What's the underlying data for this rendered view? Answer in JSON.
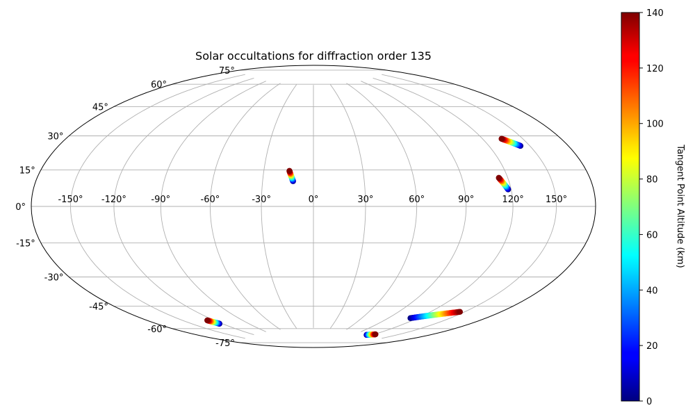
{
  "chart_data": {
    "type": "scatter",
    "projection": "hammer",
    "title": "Solar occultations for diffraction order 135",
    "x_ticks": [
      "-150°",
      "-120°",
      "-90°",
      "-60°",
      "-30°",
      "0°",
      "30°",
      "60°",
      "90°",
      "120°",
      "150°"
    ],
    "x_tick_values": [
      -150,
      -120,
      -90,
      -60,
      -30,
      0,
      30,
      60,
      90,
      120,
      150
    ],
    "y_ticks": [
      "-75°",
      "-60°",
      "-45°",
      "-30°",
      "-15°",
      "0°",
      "15°",
      "30°",
      "45°",
      "60°",
      "75°"
    ],
    "y_tick_values": [
      -75,
      -60,
      -45,
      -30,
      -15,
      0,
      15,
      30,
      45,
      60,
      75
    ],
    "grid": true,
    "colorbar": {
      "label": "Tangent Point Altitude (km)",
      "range": [
        0,
        140
      ],
      "ticks": [
        "0",
        "20",
        "40",
        "60",
        "80",
        "100",
        "120",
        "140"
      ],
      "tick_values": [
        0,
        20,
        40,
        60,
        80,
        100,
        120,
        140
      ],
      "colormap": "jet",
      "placement": "right"
    },
    "tracks": [
      {
        "lon_start": -12,
        "lat_start": 14.5,
        "lon_end": -14.5,
        "lat_end": 20.5,
        "alt_start": 0,
        "alt_end": 140
      },
      {
        "lon_start": 118,
        "lat_start": 8.5,
        "lon_end": 114,
        "lat_end": 14.5,
        "alt_start": 0,
        "alt_end": 140
      },
      {
        "lon_start": 143,
        "lat_start": 29,
        "lon_end": 134,
        "lat_end": 33.5,
        "alt_start": 0,
        "alt_end": 140
      },
      {
        "lon_start": -123,
        "lat_start": -65.5,
        "lon_end": -127,
        "lat_end": -62.5,
        "alt_start": 0,
        "alt_end": 140
      },
      {
        "lon_start": 112,
        "lat_start": -76,
        "lon_end": 122,
        "lat_end": -74.5,
        "alt_start": 0,
        "alt_end": 140
      },
      {
        "lon_start": 113,
        "lat_start": -62.5,
        "lon_end": 146,
        "lat_end": -54,
        "alt_start": 0,
        "alt_end": 140
      }
    ]
  }
}
